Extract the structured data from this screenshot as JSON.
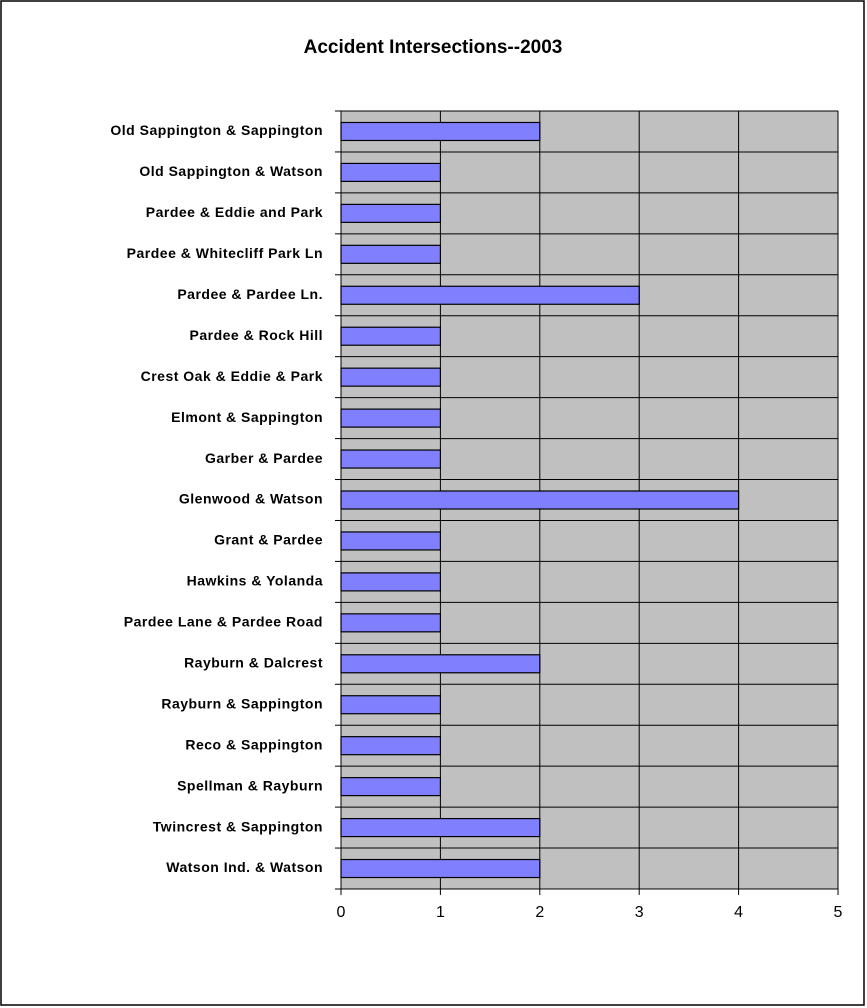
{
  "chart_data": {
    "type": "bar",
    "orientation": "horizontal",
    "title": "Accident Intersections--2003",
    "categories": [
      "Old Sappington & Sappington",
      "Old Sappington & Watson",
      "Pardee & Eddie and Park",
      "Pardee & Whitecliff Park Ln",
      "Pardee & Pardee Ln.",
      "Pardee & Rock Hill",
      "Crest Oak & Eddie & Park",
      "Elmont & Sappington",
      "Garber & Pardee",
      "Glenwood & Watson",
      "Grant & Pardee",
      "Hawkins & Yolanda",
      "Pardee Lane & Pardee Road",
      "Rayburn & Dalcrest",
      "Rayburn & Sappington",
      "Reco & Sappington",
      "Spellman & Rayburn",
      "Twincrest & Sappington",
      "Watson Ind. & Watson"
    ],
    "values": [
      2,
      1,
      1,
      1,
      3,
      1,
      1,
      1,
      1,
      4,
      1,
      1,
      1,
      2,
      1,
      1,
      1,
      2,
      2
    ],
    "color": "#8080ff",
    "xlim": [
      0,
      5
    ],
    "xticks": [
      0,
      1,
      2,
      3,
      4,
      5
    ],
    "grid": true
  }
}
